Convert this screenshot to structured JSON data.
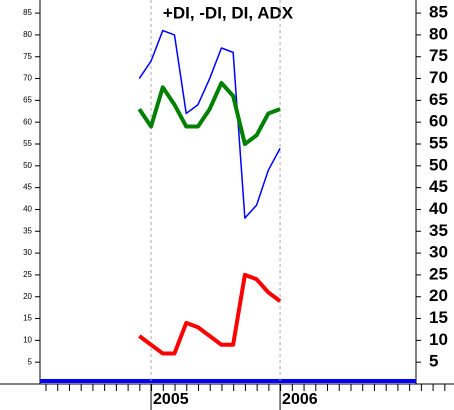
{
  "chart_data": {
    "type": "line",
    "title": "+DI, -DI, DI, ADX",
    "categories": [
      null,
      "2005",
      null,
      null,
      null,
      null,
      null,
      null,
      null,
      null,
      null,
      null,
      "2006"
    ],
    "series": [
      {
        "color": "#0000ff",
        "values": [
          70,
          74,
          81,
          80,
          62,
          64,
          70,
          77,
          76,
          38,
          41,
          49,
          54
        ]
      },
      {
        "color": "#008000",
        "values": [
          63,
          59,
          68,
          64,
          59,
          59,
          63,
          69,
          66,
          55,
          57,
          62,
          63
        ]
      },
      {
        "color": "#ff0000",
        "values": [
          11,
          9,
          7,
          7,
          14,
          13,
          11,
          9,
          9,
          25,
          24,
          21,
          19
        ]
      }
    ],
    "ylim": [
      0,
      88
    ],
    "yticks": [
      5,
      10,
      15,
      20,
      25,
      30,
      35,
      40,
      45,
      50,
      55,
      60,
      65,
      70,
      75,
      80,
      85
    ]
  }
}
